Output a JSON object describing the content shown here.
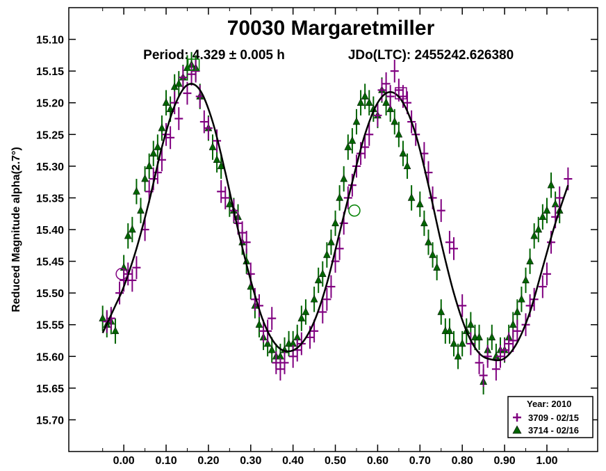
{
  "chart_data": {
    "type": "scatter",
    "title": "70030 Margaretmiller",
    "period_label": "Period: 4.329 ± 0.005 h",
    "epoch_label": "JDo(LTC): 2455242.626380",
    "xlabel": "",
    "ylabel": "Reduced Magnitude alpha(2.7°)",
    "xlim": [
      -0.13,
      1.12
    ],
    "ylim": [
      15.05,
      15.75
    ],
    "y_inverted": true,
    "x_ticks": [
      "0.00",
      "0.10",
      "0.20",
      "0.30",
      "0.40",
      "0.50",
      "0.60",
      "0.70",
      "0.80",
      "0.90",
      "1.00"
    ],
    "x_tick_values": [
      0,
      0.1,
      0.2,
      0.3,
      0.4,
      0.5,
      0.6,
      0.7,
      0.8,
      0.9,
      1.0
    ],
    "y_ticks": [
      "15.10",
      "15.15",
      "15.20",
      "15.25",
      "15.30",
      "15.35",
      "15.40",
      "15.45",
      "15.50",
      "15.55",
      "15.60",
      "15.65",
      "15.70"
    ],
    "y_tick_values": [
      15.1,
      15.15,
      15.2,
      15.25,
      15.3,
      15.35,
      15.4,
      15.45,
      15.5,
      15.55,
      15.6,
      15.65,
      15.7
    ],
    "legend": {
      "title": "Year: 2010",
      "position": "bottom-right",
      "entries": [
        {
          "label": "3709 - 02/15",
          "marker": "plus",
          "color": "#800080"
        },
        {
          "label": "3714 - 02/16",
          "marker": "triangle",
          "color": "#006400"
        }
      ]
    },
    "fit_curve": {
      "color": "#000000",
      "x": [
        -0.05,
        -0.02,
        0.0,
        0.03,
        0.06,
        0.09,
        0.12,
        0.15,
        0.18,
        0.21,
        0.24,
        0.27,
        0.3,
        0.33,
        0.36,
        0.39,
        0.42,
        0.45,
        0.48,
        0.51,
        0.54,
        0.57,
        0.6,
        0.63,
        0.66,
        0.69,
        0.72,
        0.75,
        0.78,
        0.81,
        0.84,
        0.87,
        0.9,
        0.93,
        0.96,
        0.99,
        1.02,
        1.05
      ],
      "y": [
        15.563,
        15.52,
        15.49,
        15.43,
        15.355,
        15.27,
        15.205,
        15.172,
        15.18,
        15.23,
        15.31,
        15.4,
        15.48,
        15.545,
        15.582,
        15.592,
        15.58,
        15.545,
        15.485,
        15.405,
        15.325,
        15.25,
        15.2,
        15.183,
        15.2,
        15.25,
        15.33,
        15.42,
        15.5,
        15.56,
        15.595,
        15.605,
        15.603,
        15.578,
        15.53,
        15.46,
        15.39,
        15.33
      ]
    },
    "series": [
      {
        "name": "3709 - 02/15",
        "marker": "plus",
        "color": "#800080",
        "x": [
          -0.04,
          -0.03,
          -0.01,
          0.0,
          0.01,
          0.02,
          0.03,
          0.05,
          0.06,
          0.07,
          0.08,
          0.09,
          0.1,
          0.11,
          0.12,
          0.13,
          0.14,
          0.15,
          0.16,
          0.17,
          0.18,
          0.19,
          0.2,
          0.22,
          0.23,
          0.24,
          0.26,
          0.27,
          0.28,
          0.29,
          0.3,
          0.31,
          0.32,
          0.33,
          0.34,
          0.35,
          0.36,
          0.37,
          0.38,
          0.4,
          0.41,
          0.42,
          0.44,
          0.45,
          0.47,
          0.48,
          0.49,
          0.5,
          0.51,
          0.52,
          0.53,
          0.54,
          0.55,
          0.56,
          0.57,
          0.58,
          0.6,
          0.61,
          0.62,
          0.63,
          0.64,
          0.65,
          0.66,
          0.67,
          0.68,
          0.69,
          0.71,
          0.72,
          0.73,
          0.75,
          0.77,
          0.78,
          0.8,
          0.82,
          0.84,
          0.85,
          0.86,
          0.88,
          0.89,
          0.9,
          0.91,
          0.92,
          0.93,
          0.95,
          0.96,
          0.97,
          0.99,
          1.0,
          1.01,
          1.02,
          1.03,
          1.05
        ],
        "y": [
          15.545,
          15.54,
          15.5,
          15.48,
          15.47,
          15.48,
          15.46,
          15.4,
          15.34,
          15.32,
          15.31,
          15.29,
          15.25,
          15.255,
          15.2,
          15.225,
          15.16,
          15.185,
          15.155,
          15.15,
          15.19,
          15.23,
          15.24,
          15.26,
          15.34,
          15.35,
          15.37,
          15.39,
          15.405,
          15.42,
          15.47,
          15.51,
          15.52,
          15.56,
          15.56,
          15.54,
          15.61,
          15.62,
          15.61,
          15.6,
          15.59,
          15.58,
          15.57,
          15.56,
          15.53,
          15.51,
          15.49,
          15.45,
          15.43,
          15.39,
          15.35,
          15.33,
          15.3,
          15.28,
          15.27,
          15.25,
          15.22,
          15.18,
          15.17,
          15.19,
          15.15,
          15.18,
          15.19,
          15.2,
          15.23,
          15.25,
          15.28,
          15.31,
          15.35,
          15.37,
          15.42,
          15.43,
          15.52,
          15.58,
          15.61,
          15.63,
          15.6,
          15.62,
          15.6,
          15.59,
          15.58,
          15.575,
          15.56,
          15.55,
          15.52,
          15.51,
          15.49,
          15.47,
          15.42,
          15.38,
          15.35,
          15.32
        ],
        "yerr": 0.018
      },
      {
        "name": "3714 - 02/16",
        "marker": "triangle",
        "color": "#006400",
        "x": [
          -0.05,
          -0.04,
          -0.03,
          -0.02,
          0.0,
          0.01,
          0.02,
          0.03,
          0.04,
          0.05,
          0.06,
          0.07,
          0.08,
          0.09,
          0.1,
          0.11,
          0.12,
          0.13,
          0.14,
          0.15,
          0.16,
          0.17,
          0.18,
          0.2,
          0.21,
          0.22,
          0.23,
          0.25,
          0.26,
          0.27,
          0.28,
          0.29,
          0.3,
          0.31,
          0.32,
          0.33,
          0.34,
          0.35,
          0.36,
          0.37,
          0.38,
          0.39,
          0.4,
          0.41,
          0.42,
          0.43,
          0.45,
          0.46,
          0.47,
          0.48,
          0.49,
          0.5,
          0.51,
          0.52,
          0.53,
          0.54,
          0.55,
          0.56,
          0.57,
          0.58,
          0.59,
          0.6,
          0.61,
          0.62,
          0.63,
          0.64,
          0.65,
          0.66,
          0.67,
          0.68,
          0.7,
          0.71,
          0.72,
          0.73,
          0.74,
          0.75,
          0.76,
          0.77,
          0.78,
          0.79,
          0.8,
          0.81,
          0.82,
          0.83,
          0.84,
          0.85,
          0.86,
          0.87,
          0.88,
          0.89,
          0.9,
          0.91,
          0.92,
          0.93,
          0.94,
          0.95,
          0.96,
          0.97,
          0.98,
          0.99,
          1.0,
          1.01,
          1.02,
          1.03
        ],
        "y": [
          15.54,
          15.55,
          15.545,
          15.56,
          15.46,
          15.41,
          15.4,
          15.34,
          15.37,
          15.32,
          15.3,
          15.28,
          15.27,
          15.24,
          15.2,
          15.21,
          15.175,
          15.17,
          15.16,
          15.145,
          15.14,
          15.145,
          15.19,
          15.24,
          15.27,
          15.29,
          15.3,
          15.36,
          15.37,
          15.38,
          15.42,
          15.45,
          15.49,
          15.52,
          15.55,
          15.57,
          15.58,
          15.59,
          15.6,
          15.6,
          15.59,
          15.58,
          15.58,
          15.57,
          15.54,
          15.53,
          15.51,
          15.48,
          15.47,
          15.44,
          15.42,
          15.39,
          15.35,
          15.32,
          15.27,
          15.26,
          15.23,
          15.2,
          15.19,
          15.2,
          15.21,
          15.22,
          15.18,
          15.2,
          15.21,
          15.23,
          15.25,
          15.28,
          15.3,
          15.35,
          15.36,
          15.39,
          15.42,
          15.44,
          15.46,
          15.53,
          15.56,
          15.56,
          15.58,
          15.6,
          15.58,
          15.56,
          15.55,
          15.57,
          15.57,
          15.64,
          15.59,
          15.57,
          15.6,
          15.59,
          15.59,
          15.57,
          15.55,
          15.53,
          15.51,
          15.48,
          15.45,
          15.41,
          15.4,
          15.38,
          15.37,
          15.33,
          15.36,
          15.37
        ],
        "yerr": 0.02
      }
    ],
    "special_markers": [
      {
        "shape": "square",
        "color": "#008000",
        "x": 0.165,
        "y": 15.14
      },
      {
        "shape": "square",
        "color": "#800080",
        "x": 0.655,
        "y": 15.185
      },
      {
        "shape": "circle",
        "color": "#008000",
        "x": 0.545,
        "y": 15.37
      },
      {
        "shape": "circle",
        "color": "#800080",
        "x": -0.005,
        "y": 15.47
      }
    ]
  }
}
